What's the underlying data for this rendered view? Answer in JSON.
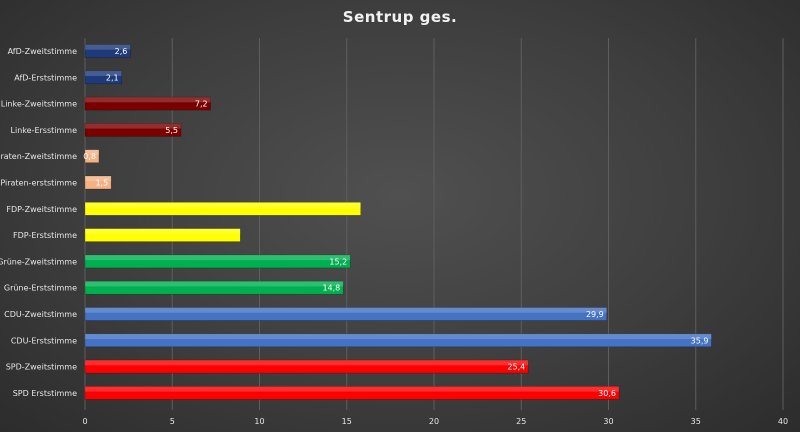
{
  "chart_data": {
    "type": "bar",
    "orientation": "horizontal",
    "title": "Sentrup ges.",
    "xlabel": "",
    "ylabel": "",
    "xlim": [
      0,
      40
    ],
    "xticks": [
      0,
      5,
      10,
      15,
      20,
      25,
      30,
      35,
      40
    ],
    "grid": true,
    "legend": "none",
    "categories": [
      "AfD-Zweitstimme",
      "AfD-Erststimme",
      "Linke-Zweitstimme",
      "Linke-Ersstimme",
      "Piraten-Zweitstimme",
      "Piraten-erststimme",
      "FDP-Zweitstimme",
      "FDP-Erststimme",
      "Grüne-Zweitstimme",
      "Grüne-Erststimme",
      "CDU-Zweitstimme",
      "CDU-Erststimme",
      "SPD-Zweitstimme",
      "SPD Erststimme"
    ],
    "values": [
      2.6,
      2.1,
      7.2,
      5.5,
      0.8,
      1.5,
      15.8,
      8.9,
      15.2,
      14.8,
      29.9,
      35.9,
      25.4,
      30.6
    ],
    "data_labels": [
      "2,6",
      "2,1",
      "7,2",
      "5,5",
      "0,8",
      "1,5",
      "",
      "",
      "15,2",
      "14,8",
      "29,9",
      "35,9",
      "25,4",
      "30,6"
    ],
    "colors": [
      "#1f3a7a",
      "#1f3a7a",
      "#7a0000",
      "#7a0000",
      "#f4b183",
      "#f4b183",
      "#ffff00",
      "#ffff00",
      "#00b050",
      "#00b050",
      "#4472c4",
      "#4472c4",
      "#ff0000",
      "#ff0000"
    ]
  }
}
